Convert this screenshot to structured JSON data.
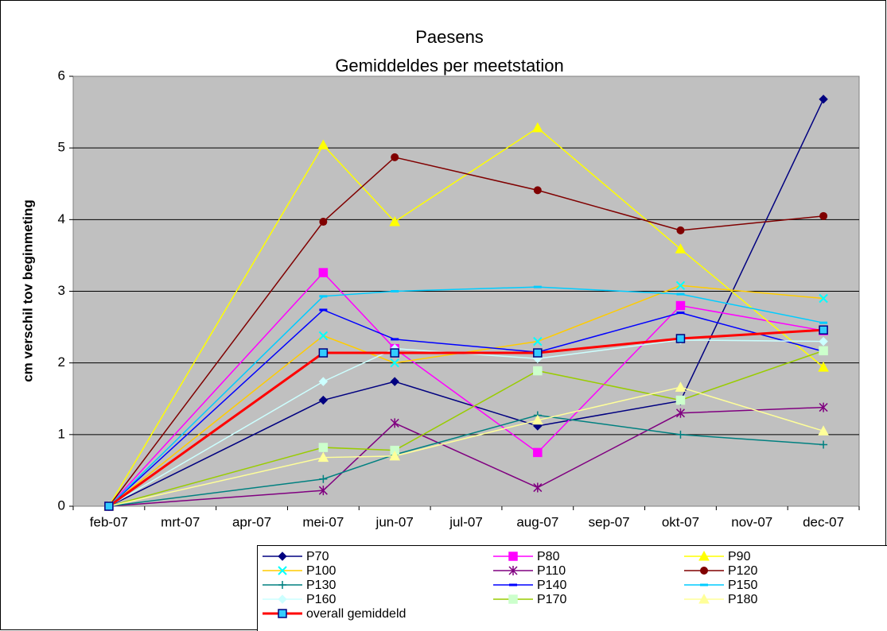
{
  "chart_data": {
    "type": "line",
    "title": "Paesens",
    "subtitle": "Gemiddeldes per meetstation",
    "y_label": "cm verschil tov beginmeting",
    "categories": [
      "feb-07",
      "mrt-07",
      "apr-07",
      "mei-07",
      "jun-07",
      "jul-07",
      "aug-07",
      "sep-07",
      "okt-07",
      "nov-07",
      "dec-07"
    ],
    "x": [
      "feb-07",
      "mei-07",
      "jun-07",
      "aug-07",
      "okt-07",
      "dec-07"
    ],
    "ylim": [
      0,
      6
    ],
    "yticks": [
      0,
      1,
      2,
      3,
      4,
      5,
      6
    ],
    "grid": true,
    "legend": "bottom",
    "series": [
      {
        "name": "P70",
        "color": "#000080",
        "marker": "diamond",
        "marker_color": "#000080",
        "values": [
          0,
          1.48,
          1.74,
          1.12,
          1.47,
          5.68
        ]
      },
      {
        "name": "P80",
        "color": "#ff00ff",
        "marker": "square",
        "marker_color": "#ff00ff",
        "values": [
          0,
          3.26,
          2.2,
          0.75,
          2.8,
          2.45
        ]
      },
      {
        "name": "P90",
        "color": "#ffff00",
        "marker": "triangle",
        "marker_color": "#ffff00",
        "values": [
          0,
          5.04,
          3.97,
          5.28,
          3.59,
          1.94
        ]
      },
      {
        "name": "P100",
        "color": "#ffcc00",
        "marker": "x",
        "marker_color": "#00ffff",
        "values": [
          0,
          2.38,
          2.0,
          2.3,
          3.08,
          2.9
        ]
      },
      {
        "name": "P110",
        "color": "#800080",
        "marker": "star",
        "marker_color": "#800080",
        "values": [
          0,
          0.22,
          1.16,
          0.26,
          1.3,
          1.38
        ]
      },
      {
        "name": "P120",
        "color": "#800000",
        "marker": "circle",
        "marker_color": "#800000",
        "values": [
          0,
          3.97,
          4.87,
          4.41,
          3.85,
          4.05
        ]
      },
      {
        "name": "P130",
        "color": "#008080",
        "marker": "plus",
        "marker_color": "#008080",
        "values": [
          0,
          0.38,
          0.72,
          1.27,
          1.0,
          0.86
        ]
      },
      {
        "name": "P140",
        "color": "#0000ff",
        "marker": "dash",
        "marker_color": "#0000ff",
        "values": [
          0,
          2.74,
          2.33,
          2.15,
          2.7,
          2.16
        ]
      },
      {
        "name": "P150",
        "color": "#00ccff",
        "marker": "dash",
        "marker_color": "#00ccff",
        "values": [
          0,
          2.93,
          3.0,
          3.06,
          2.96,
          2.56
        ]
      },
      {
        "name": "P160",
        "color": "#ccffff",
        "marker": "diamond",
        "marker_color": "#ccffff",
        "values": [
          0,
          1.74,
          2.2,
          2.06,
          2.32,
          2.3
        ]
      },
      {
        "name": "P170",
        "color": "#99cc00",
        "marker": "square",
        "marker_color": "#ccffcc",
        "values": [
          0,
          0.82,
          0.78,
          1.89,
          1.48,
          2.17
        ]
      },
      {
        "name": "P180",
        "color": "#ffff99",
        "marker": "triangle",
        "marker_color": "#ffff99",
        "values": [
          0,
          0.68,
          0.7,
          1.2,
          1.66,
          1.05
        ]
      },
      {
        "name": "overall gemiddeld",
        "color": "#ff0000",
        "marker": "square",
        "marker_color": "#33ccff",
        "width": 3,
        "values": [
          0,
          2.14,
          2.14,
          2.14,
          2.34,
          2.46
        ]
      }
    ]
  }
}
